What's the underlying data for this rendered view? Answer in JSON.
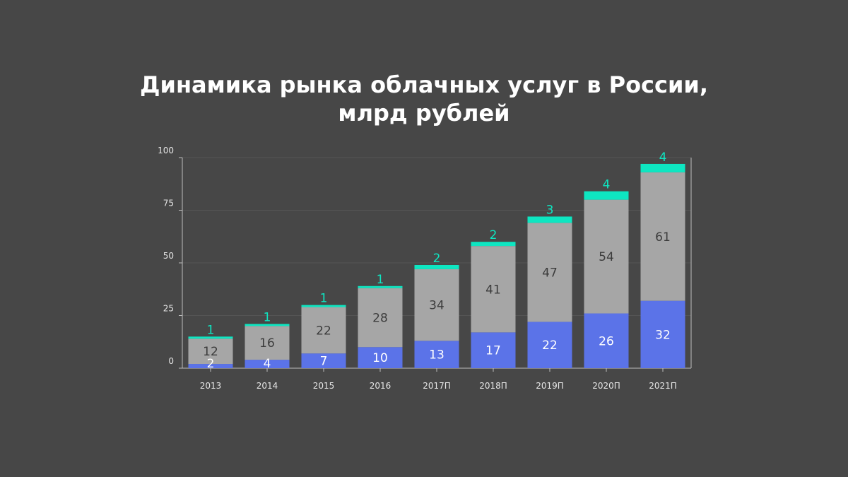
{
  "chart_data": {
    "type": "bar",
    "stacked": true,
    "title_line1": "Динамика рынка облачных услуг в России,",
    "title_line2": "млрд рублей",
    "xlabel": "",
    "ylabel": "",
    "categories": [
      "2013",
      "2014",
      "2015",
      "2016",
      "2017П",
      "2018П",
      "2019П",
      "2020П",
      "2021П"
    ],
    "series": [
      {
        "color": "#5b73e8",
        "values": [
          2,
          4,
          7,
          10,
          13,
          17,
          22,
          26,
          32
        ]
      },
      {
        "color": "#a6a6a6",
        "values": [
          12,
          16,
          22,
          28,
          34,
          41,
          47,
          54,
          61
        ]
      },
      {
        "color": "#0ee6c1",
        "values": [
          1,
          1,
          1,
          1,
          2,
          2,
          3,
          4,
          4
        ]
      }
    ],
    "ylim": [
      0,
      100
    ],
    "yticks": [
      "0",
      "25",
      "50",
      "75",
      "100"
    ],
    "grid": true,
    "legend": "none"
  }
}
